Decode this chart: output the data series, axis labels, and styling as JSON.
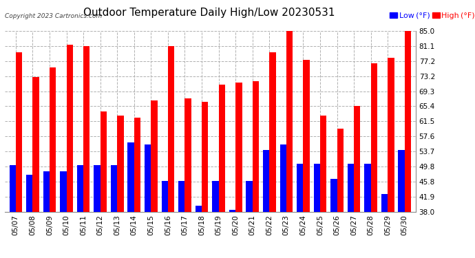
{
  "title": "Outdoor Temperature Daily High/Low 20230531",
  "copyright": "Copyright 2023 Cartronics.com",
  "dates": [
    "05/07",
    "05/08",
    "05/09",
    "05/10",
    "05/11",
    "05/12",
    "05/13",
    "05/14",
    "05/15",
    "05/16",
    "05/17",
    "05/18",
    "05/19",
    "05/20",
    "05/21",
    "05/22",
    "05/23",
    "05/24",
    "05/25",
    "05/26",
    "05/27",
    "05/28",
    "05/29",
    "05/30"
  ],
  "highs": [
    79.5,
    73.0,
    75.5,
    81.5,
    81.0,
    64.0,
    63.0,
    62.5,
    67.0,
    81.0,
    67.5,
    66.5,
    71.0,
    71.5,
    72.0,
    79.5,
    85.0,
    77.5,
    63.0,
    59.5,
    65.5,
    76.5,
    78.0,
    85.0
  ],
  "lows": [
    50.0,
    47.5,
    48.5,
    48.5,
    50.0,
    50.0,
    50.0,
    56.0,
    55.5,
    46.0,
    46.0,
    39.5,
    46.0,
    38.5,
    46.0,
    54.0,
    55.5,
    50.5,
    50.5,
    46.5,
    50.5,
    50.5,
    42.5,
    54.0
  ],
  "yticks": [
    38.0,
    41.9,
    45.8,
    49.8,
    53.7,
    57.6,
    61.5,
    65.4,
    69.3,
    73.2,
    77.2,
    81.1,
    85.0
  ],
  "ymin": 38.0,
  "ymax": 85.0,
  "high_color": "#ff0000",
  "low_color": "#0000ff",
  "bg_color": "#ffffff",
  "grid_color": "#b0b0b0",
  "title_fontsize": 11,
  "tick_fontsize": 7.5,
  "copyright_fontsize": 6.5,
  "legend_fontsize": 8
}
